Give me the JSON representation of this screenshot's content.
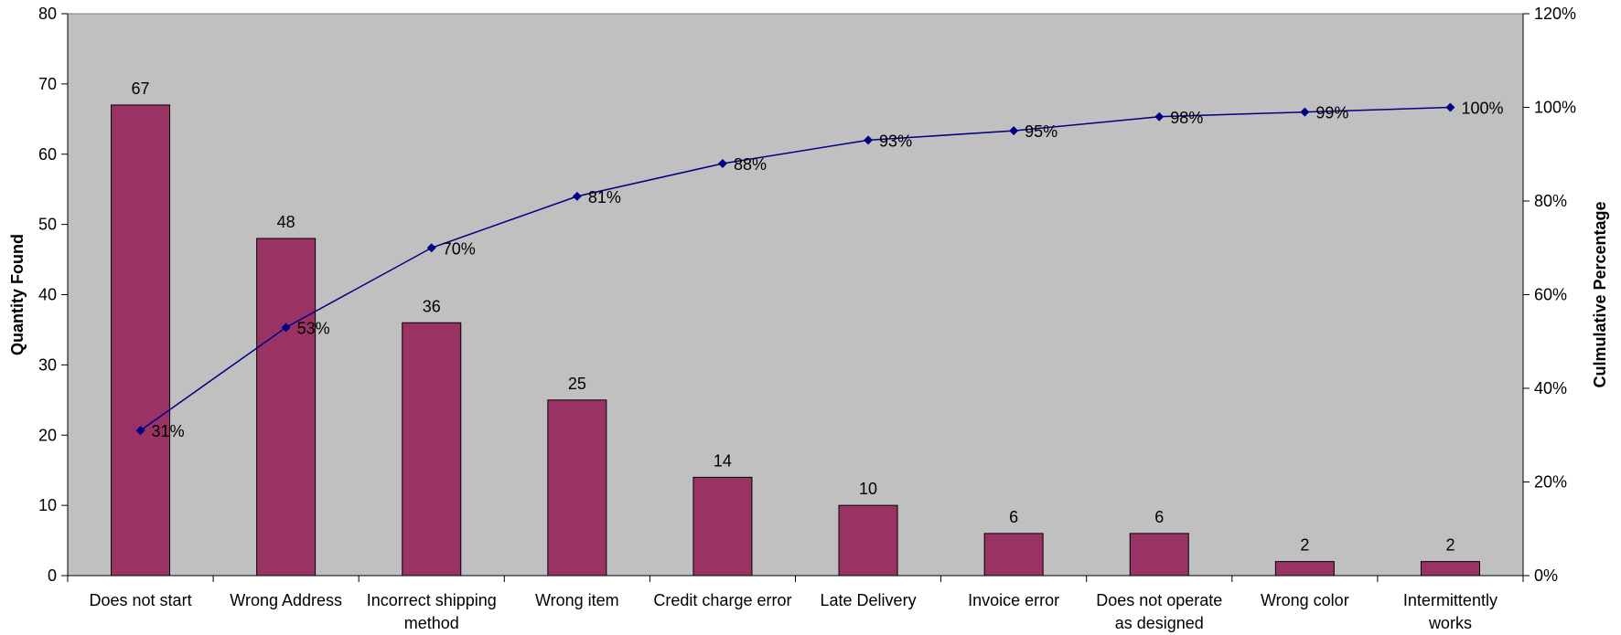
{
  "chart_data": {
    "type": "bar",
    "title": "",
    "ylabel": "Quantity Found",
    "y2label": "Culmulative Percentage",
    "ylim": [
      0,
      80
    ],
    "y_ticks": [
      0,
      10,
      20,
      30,
      40,
      50,
      60,
      70,
      80
    ],
    "y2lim": [
      0,
      120
    ],
    "y2_ticks": [
      "0%",
      "20%",
      "40%",
      "60%",
      "80%",
      "100%",
      "120%"
    ],
    "categories": [
      [
        "Does not start"
      ],
      [
        "Wrong Address"
      ],
      [
        "Incorrect shipping",
        "method"
      ],
      [
        "Wrong item"
      ],
      [
        "Credit charge error"
      ],
      [
        "Late Delivery"
      ],
      [
        "Invoice error"
      ],
      [
        "Does not operate",
        "as designed"
      ],
      [
        "Wrong color"
      ],
      [
        "Intermittently",
        "works"
      ]
    ],
    "series": [
      {
        "type": "bar",
        "axis": "left",
        "values": [
          67,
          48,
          36,
          25,
          14,
          10,
          6,
          6,
          2,
          2
        ],
        "labels": [
          "67",
          "48",
          "36",
          "25",
          "14",
          "10",
          "6",
          "6",
          "2",
          "2"
        ]
      },
      {
        "type": "line",
        "axis": "right",
        "values": [
          31,
          53,
          70,
          81,
          88,
          93,
          95,
          98,
          99,
          100
        ],
        "labels": [
          "31%",
          "53%",
          "70%",
          "81%",
          "88%",
          "93%",
          "95%",
          "98%",
          "99%",
          "100%"
        ]
      }
    ],
    "colors": {
      "plot_background": "#c0c0c0",
      "bar_fill": "#993366",
      "bar_stroke": "#000000",
      "line": "#000080"
    },
    "grid": false,
    "legend": "none"
  }
}
